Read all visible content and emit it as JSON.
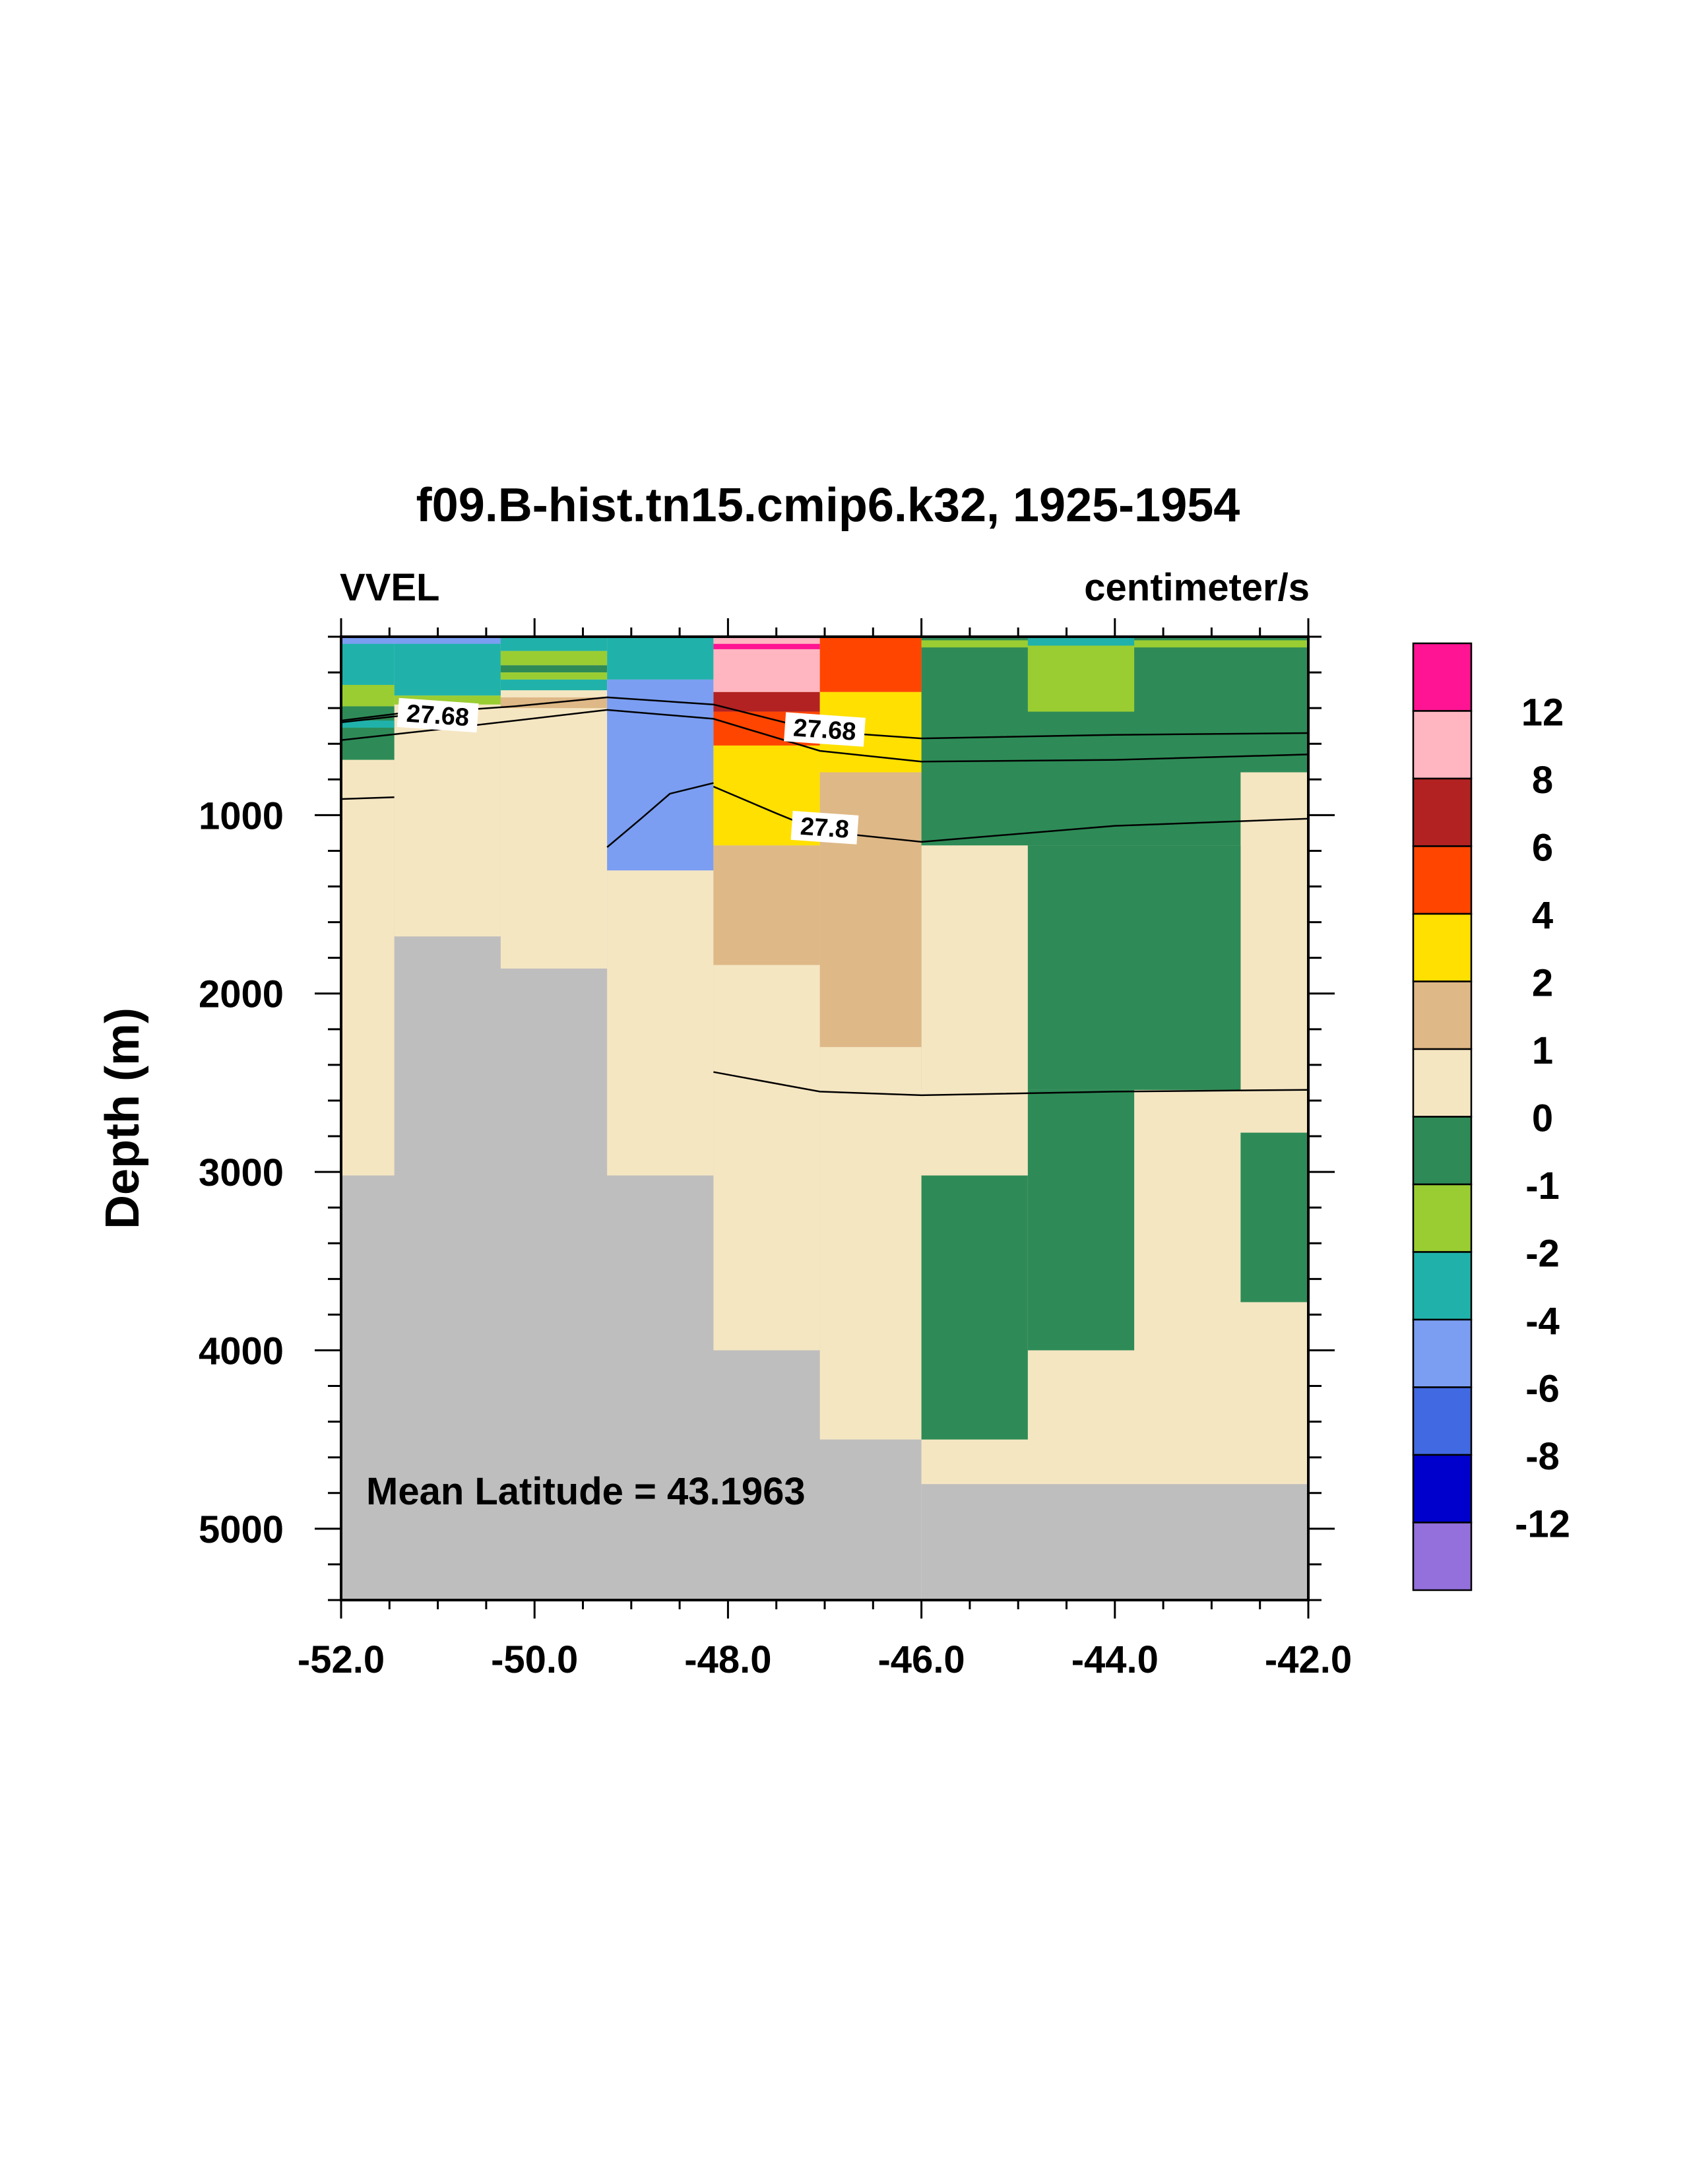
{
  "chart_data": {
    "type": "heatmap",
    "title": "f09.B-hist.tn15.cmip6.k32, 1925-1954",
    "left_string": "VVEL",
    "right_string": "centimeter/s",
    "ylabel": "Depth (m)",
    "xlabel": "",
    "xlim": [
      -52.0,
      -42.0
    ],
    "ylim": [
      0,
      5400
    ],
    "x_ticks": [
      "-52.0",
      "-50.0",
      "-48.0",
      "-46.0",
      "-44.0",
      "-42.0"
    ],
    "y_ticks": [
      "1000",
      "2000",
      "3000",
      "4000",
      "5000"
    ],
    "annotation": "Mean Latitude = 43.1963",
    "colorbar": {
      "labels": [
        "12",
        "8",
        "6",
        "4",
        "2",
        "1",
        "0",
        "-1",
        "-2",
        "-4",
        "-6",
        "-8",
        "-12"
      ],
      "colors_top_to_bottom": [
        "#ff1493",
        "#ffb6c1",
        "#b22222",
        "#ff4500",
        "#ffe000",
        "#deb887",
        "#f5e6c2",
        "#2e8b57",
        "#9acd32",
        "#20b2aa",
        "#7b9ef2",
        "#4169e1",
        "#0000cd",
        "#9370db"
      ]
    },
    "land_color": "#bebebe",
    "cells": [
      {
        "x0": -52.0,
        "x1": -46.0,
        "y0": 0,
        "y1": 5400,
        "color": "#bebebe"
      },
      {
        "x0": -46.0,
        "x1": -42.0,
        "y0": 0,
        "y1": 5400,
        "color": "#bebebe"
      },
      {
        "x0": -52.0,
        "x1": -51.45,
        "y0": 0,
        "y1": 3020,
        "color": "#f5e6c2"
      },
      {
        "x0": -51.45,
        "x1": -50.35,
        "y0": 0,
        "y1": 1680,
        "color": "#f5e6c2"
      },
      {
        "x0": -50.35,
        "x1": -49.25,
        "y0": 0,
        "y1": 1860,
        "color": "#f5e6c2"
      },
      {
        "x0": -49.25,
        "x1": -48.15,
        "y0": 0,
        "y1": 3020,
        "color": "#f5e6c2"
      },
      {
        "x0": -48.15,
        "x1": -47.05,
        "y0": 0,
        "y1": 4000,
        "color": "#f5e6c2"
      },
      {
        "x0": -47.05,
        "x1": -46.0,
        "y0": 0,
        "y1": 4500,
        "color": "#f5e6c2"
      },
      {
        "x0": -46.0,
        "x1": -42.0,
        "y0": 0,
        "y1": 4750,
        "color": "#f5e6c2"
      },
      {
        "x0": -52.0,
        "x1": -51.45,
        "y0": 0,
        "y1": 270,
        "color": "#20b2aa"
      },
      {
        "x0": -51.45,
        "x1": -50.35,
        "y0": 0,
        "y1": 330,
        "color": "#20b2aa"
      },
      {
        "x0": -51.45,
        "x1": -50.35,
        "y0": 330,
        "y1": 380,
        "color": "#9acd32"
      },
      {
        "x0": -52.0,
        "x1": -50.35,
        "y0": 0,
        "y1": 40,
        "color": "#7b9ef2"
      },
      {
        "x0": -52.0,
        "x1": -51.45,
        "y0": 270,
        "y1": 390,
        "color": "#9acd32"
      },
      {
        "x0": -52.0,
        "x1": -51.45,
        "y0": 390,
        "y1": 690,
        "color": "#2e8b57"
      },
      {
        "x0": -52.0,
        "x1": -51.45,
        "y0": 470,
        "y1": 510,
        "color": "#20b2aa"
      },
      {
        "x0": -50.35,
        "x1": -49.25,
        "y0": 0,
        "y1": 80,
        "color": "#20b2aa"
      },
      {
        "x0": -50.35,
        "x1": -49.25,
        "y0": 80,
        "y1": 160,
        "color": "#9acd32"
      },
      {
        "x0": -50.35,
        "x1": -49.25,
        "y0": 160,
        "y1": 200,
        "color": "#2e8b57"
      },
      {
        "x0": -50.35,
        "x1": -49.25,
        "y0": 200,
        "y1": 240,
        "color": "#9acd32"
      },
      {
        "x0": -50.35,
        "x1": -49.25,
        "y0": 240,
        "y1": 300,
        "color": "#20b2aa"
      },
      {
        "x0": -50.35,
        "x1": -49.25,
        "y0": 340,
        "y1": 400,
        "color": "#deb887"
      },
      {
        "x0": -49.25,
        "x1": -48.15,
        "y0": 0,
        "y1": 240,
        "color": "#20b2aa"
      },
      {
        "x0": -49.25,
        "x1": -48.15,
        "y0": 240,
        "y1": 1310,
        "color": "#7b9ef2"
      },
      {
        "x0": -48.15,
        "x1": -47.05,
        "y0": 0,
        "y1": 310,
        "color": "#ffb6c1"
      },
      {
        "x0": -48.15,
        "x1": -47.05,
        "y0": 40,
        "y1": 70,
        "color": "#ff1493"
      },
      {
        "x0": -48.15,
        "x1": -47.05,
        "y0": 310,
        "y1": 420,
        "color": "#b22222"
      },
      {
        "x0": -48.15,
        "x1": -47.05,
        "y0": 420,
        "y1": 610,
        "color": "#ff4500"
      },
      {
        "x0": -48.15,
        "x1": -47.05,
        "y0": 610,
        "y1": 1170,
        "color": "#ffe000"
      },
      {
        "x0": -48.15,
        "x1": -47.05,
        "y0": 1170,
        "y1": 1840,
        "color": "#deb887"
      },
      {
        "x0": -47.05,
        "x1": -46.0,
        "y0": 0,
        "y1": 310,
        "color": "#ff4500"
      },
      {
        "x0": -47.05,
        "x1": -46.0,
        "y0": 310,
        "y1": 760,
        "color": "#ffe000"
      },
      {
        "x0": -47.05,
        "x1": -46.0,
        "y0": 760,
        "y1": 2300,
        "color": "#deb887"
      },
      {
        "x0": -46.0,
        "x1": -42.0,
        "y0": 0,
        "y1": 1170,
        "color": "#2e8b57"
      },
      {
        "x0": -46.0,
        "x1": -42.0,
        "y0": 20,
        "y1": 60,
        "color": "#9acd32"
      },
      {
        "x0": -44.9,
        "x1": -43.8,
        "y0": 0,
        "y1": 50,
        "color": "#20b2aa"
      },
      {
        "x0": -44.9,
        "x1": -43.8,
        "y0": 50,
        "y1": 420,
        "color": "#9acd32"
      },
      {
        "x0": -46.0,
        "x1": -42.7,
        "y0": 1170,
        "y1": 2540,
        "color": "#2e8b57"
      },
      {
        "x0": -42.7,
        "x1": -42.0,
        "y0": 760,
        "y1": 2540,
        "color": "#f5e6c2"
      },
      {
        "x0": -44.9,
        "x1": -42.7,
        "y0": 1170,
        "y1": 2540,
        "color": "#2e8b57"
      },
      {
        "x0": -46.0,
        "x1": -44.9,
        "y0": 1170,
        "y1": 3020,
        "color": "#f5e6c2"
      },
      {
        "x0": -44.9,
        "x1": -43.8,
        "y0": 2540,
        "y1": 4000,
        "color": "#2e8b57"
      },
      {
        "x0": -46.0,
        "x1": -44.9,
        "y0": 3020,
        "y1": 4500,
        "color": "#2e8b57"
      },
      {
        "x0": -42.7,
        "x1": -42.0,
        "y0": 2780,
        "y1": 3730,
        "color": "#2e8b57"
      }
    ],
    "contours": [
      {
        "label": "27.68",
        "points": [
          [
            -52.0,
            480
          ],
          [
            -51.0,
            420
          ],
          [
            -50.2,
            390
          ],
          [
            -49.25,
            340
          ],
          [
            -48.15,
            380
          ],
          [
            -47.05,
            530
          ],
          [
            -46.0,
            570
          ],
          [
            -44.0,
            550
          ],
          [
            -42.0,
            540
          ]
        ],
        "label_at": [
          -47.0,
          520
        ]
      },
      {
        "label": "",
        "points": [
          [
            -52.0,
            580
          ],
          [
            -51.0,
            520
          ],
          [
            -50.2,
            470
          ],
          [
            -49.25,
            410
          ],
          [
            -48.15,
            460
          ],
          [
            -47.05,
            640
          ],
          [
            -46.0,
            700
          ],
          [
            -44.0,
            690
          ],
          [
            -42.0,
            660
          ]
        ]
      },
      {
        "label": "27.68",
        "points": [
          [
            -52.0,
            470
          ],
          [
            -51.4,
            430
          ]
        ],
        "label_at": [
          -51.0,
          440
        ]
      },
      {
        "label": "27.8",
        "points": [
          [
            -48.15,
            840
          ],
          [
            -47.5,
            990
          ],
          [
            -47.05,
            1090
          ],
          [
            -46.0,
            1150
          ],
          [
            -44.0,
            1060
          ],
          [
            -42.0,
            1020
          ]
        ],
        "label_at": [
          -47.0,
          1070
        ]
      },
      {
        "label": "",
        "points": [
          [
            -52.0,
            910
          ],
          [
            -51.45,
            900
          ]
        ]
      },
      {
        "label": "",
        "points": [
          [
            -49.25,
            1180
          ],
          [
            -48.9,
            1020
          ],
          [
            -48.6,
            880
          ],
          [
            -48.15,
            820
          ]
        ]
      },
      {
        "label": "",
        "points": [
          [
            -48.15,
            2440
          ],
          [
            -47.05,
            2550
          ],
          [
            -46.0,
            2570
          ],
          [
            -44.0,
            2550
          ],
          [
            -42.0,
            2540
          ]
        ]
      }
    ]
  }
}
